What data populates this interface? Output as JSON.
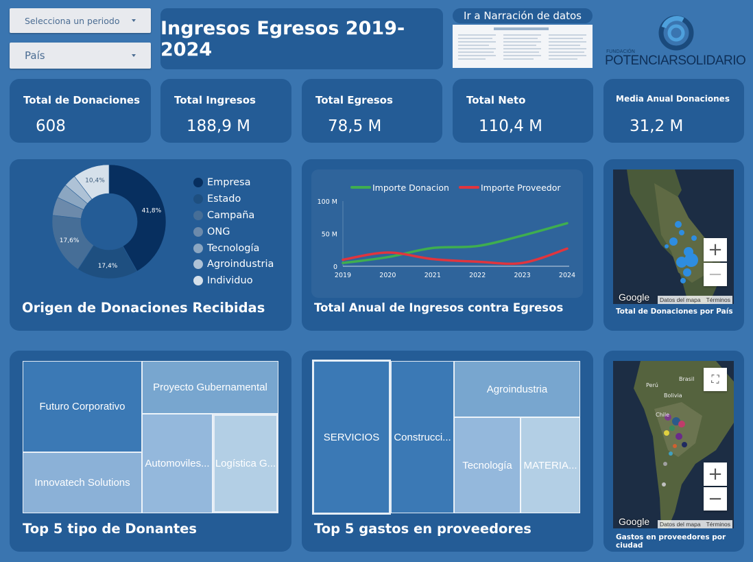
{
  "filters": {
    "period_label": "Selecciona un periodo",
    "country_label": "País"
  },
  "header": {
    "title": "Ingresos Egresos 2019-2024",
    "narrative_link": "Ir a Narración de datos",
    "org_small": "FUNDACIÓN",
    "org_name_a": "POTENCIAR",
    "org_name_b": "SOLIDARIO"
  },
  "kpis": [
    {
      "label": "Total de Donaciones",
      "value": "608"
    },
    {
      "label": "Total Ingresos",
      "value": "188,9 M"
    },
    {
      "label": "Total Egresos",
      "value": "78,5 M"
    },
    {
      "label": "Total Neto",
      "value": "110,4 M"
    },
    {
      "label": "Media Anual Donaciones",
      "value": "31,2 M"
    }
  ],
  "donut": {
    "title": "Origen de Donaciones Recibidas",
    "legend": [
      "Empresa",
      "Estado",
      "Campaña",
      "ONG",
      "Tecnología",
      "Agroindustria",
      "Individuo"
    ]
  },
  "line": {
    "title": "Total Anual de Ingresos contra Egresos"
  },
  "map1": {
    "caption": "Total de Donaciones por País",
    "attr_data": "Datos del mapa",
    "attr_terms": "Términos",
    "google": "Google"
  },
  "map2": {
    "caption": "Gastos en proveedores por ciudad",
    "attr_data": "Datos del mapa",
    "attr_terms": "Términos",
    "google": "Google",
    "labels": {
      "brasil": "Brasil",
      "peru": "Perú",
      "bolivia": "Bolivia",
      "chile": "Chile"
    }
  },
  "treemap1": {
    "title": "Top 5 tipo de Donantes",
    "items": [
      "Futuro Corporativo",
      "Proyecto Gubernamental",
      "Innovatech Solutions",
      "Automoviles...",
      "Logística G..."
    ]
  },
  "treemap2": {
    "title": "Top 5 gastos en proveedores",
    "items": [
      "SERVICIOS",
      "Construcci...",
      "Agroindustria",
      "Tecnología",
      "MATERIA..."
    ]
  },
  "chart_data": [
    {
      "type": "pie",
      "title": "Origen de Donaciones Recibidas",
      "categories": [
        "Empresa",
        "Estado",
        "Campaña",
        "ONG",
        "Tecnología",
        "Agroindustria",
        "Individuo"
      ],
      "values": [
        41.8,
        17.4,
        17.6,
        5.2,
        4.1,
        3.5,
        10.4
      ],
      "labels": [
        "41,8%",
        "17,4%",
        "17,6%",
        "",
        "",
        "",
        "10,4%"
      ],
      "colors": [
        "#072f5f",
        "#1e4f80",
        "#466e97",
        "#6c8aab",
        "#8ba6c1",
        "#aec2d6",
        "#d5e0ea"
      ],
      "legend_position": "right"
    },
    {
      "type": "line",
      "x": [
        "2019",
        "2020",
        "2021",
        "2022",
        "2023",
        "2024"
      ],
      "y_ticks": [
        "0",
        "50 M",
        "100 M"
      ],
      "ylim": [
        0,
        100
      ],
      "series": [
        {
          "name": "Importe Donacion",
          "color": "#3fae4f",
          "values": [
            5,
            14,
            28,
            31,
            47,
            66
          ]
        },
        {
          "name": "Importe Proveedor",
          "color": "#e0353e",
          "values": [
            10,
            21,
            11,
            7,
            5,
            27
          ]
        }
      ],
      "legend_position": "top"
    },
    {
      "type": "treemap",
      "title": "Top 5 tipo de Donantes",
      "categories": [
        "Futuro Corporativo",
        "Proyecto Gubernamental",
        "Innovatech Solutions",
        "Automoviles...",
        "Logística G..."
      ]
    },
    {
      "type": "treemap",
      "title": "Top 5 gastos en proveedores",
      "categories": [
        "SERVICIOS",
        "Construcci...",
        "Agroindustria",
        "Tecnología",
        "MATERIA..."
      ]
    }
  ]
}
